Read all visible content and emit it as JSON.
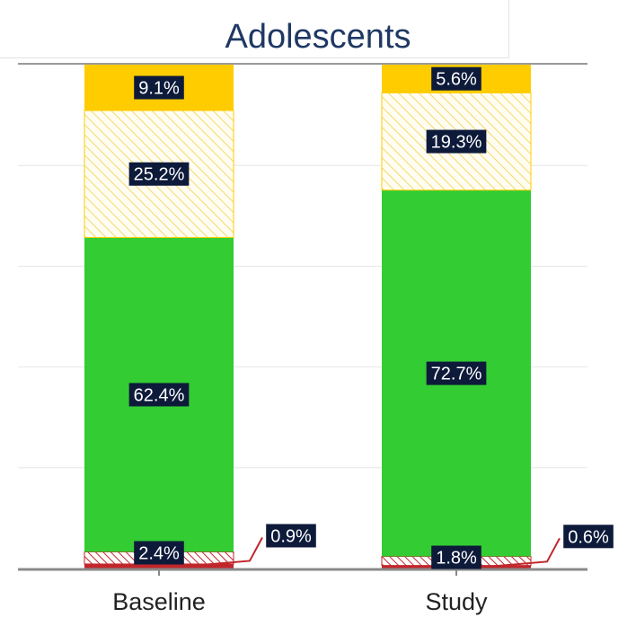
{
  "chart_data": {
    "type": "bar",
    "stacked": true,
    "title": "Adolescents",
    "categories": [
      "Baseline",
      "Study"
    ],
    "xlabel": "",
    "ylabel": "",
    "ylim": [
      0,
      100
    ],
    "grid": true,
    "series": [
      {
        "name": "segment-1-red-solid",
        "values": [
          0.9,
          0.6
        ],
        "color": "#c0262b",
        "pattern": "solid",
        "labels": [
          "0.9%",
          "0.6%"
        ],
        "label_style": "callout"
      },
      {
        "name": "segment-2-red-hatched",
        "values": [
          2.4,
          1.8
        ],
        "color": "#c0262b",
        "pattern": "hatch",
        "labels": [
          "2.4%",
          "1.8%"
        ],
        "label_style": "inside"
      },
      {
        "name": "segment-3-green",
        "values": [
          62.4,
          72.7
        ],
        "color": "#33cc33",
        "pattern": "solid",
        "labels": [
          "62.4%",
          "72.7%"
        ],
        "label_style": "inside"
      },
      {
        "name": "segment-4-yellow-hatched",
        "values": [
          25.2,
          19.3
        ],
        "color": "#ffcc00",
        "pattern": "hatch",
        "labels": [
          "25.2%",
          "19.3%"
        ],
        "label_style": "inside"
      },
      {
        "name": "segment-5-yellow-solid",
        "values": [
          9.1,
          5.6
        ],
        "color": "#ffcc00",
        "pattern": "solid",
        "labels": [
          "9.1%",
          "5.6%"
        ],
        "label_style": "inside"
      }
    ]
  }
}
